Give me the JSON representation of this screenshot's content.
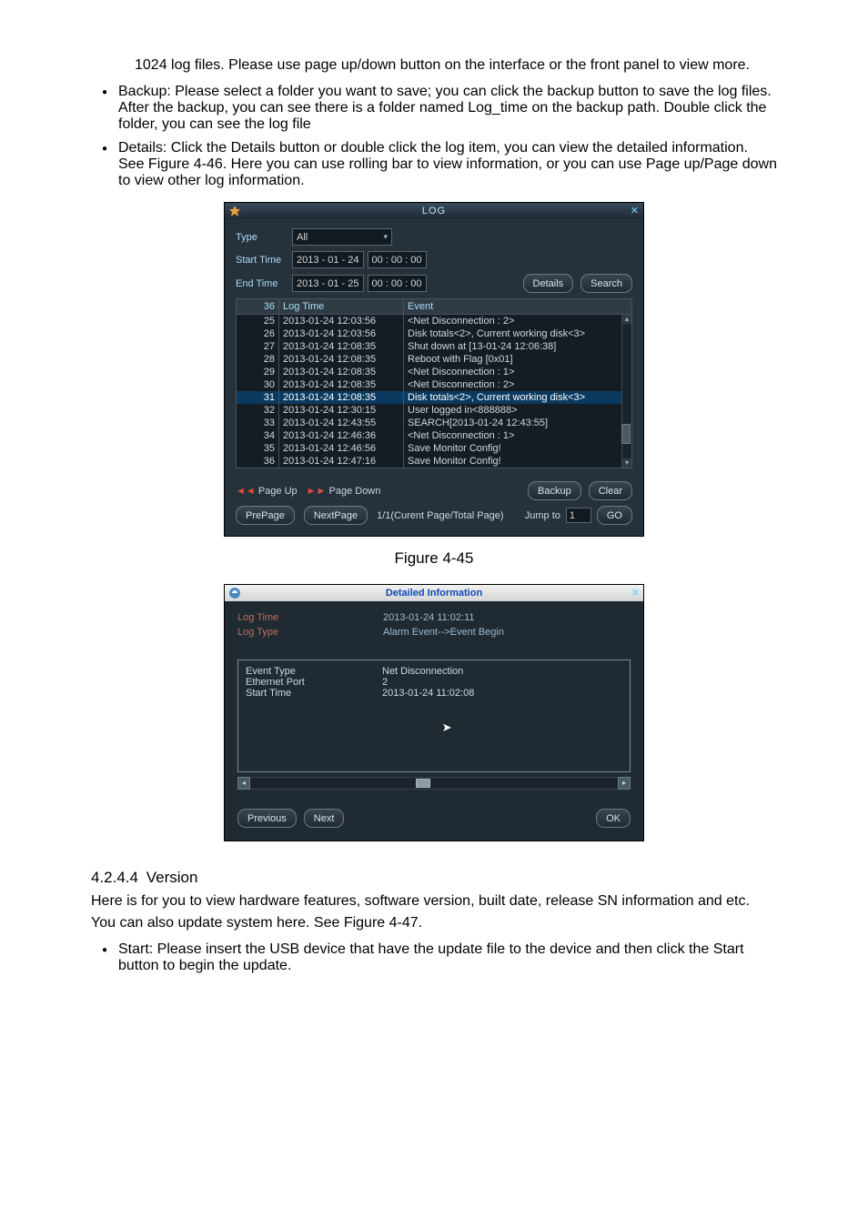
{
  "para_top": "1024 log files.  Please use page up/down button on the interface or the front panel to view more.",
  "bullets_top": [
    "Backup: Please select a folder you want to save; you can click the backup button to save the log files. After the backup, you can see there is a folder named Log_time on the backup path. Double click the folder, you can see the log file",
    "Details: Click the Details button or double click the log item, you can view the detailed information. See Figure 4-46. Here you can use rolling bar to view information, or you can use Page up/Page down to view other log information."
  ],
  "dlg1": {
    "title": "LOG",
    "type_label": "Type",
    "type_value": "All",
    "start_label": "Start Time",
    "start_date": "2013 - 01 - 24",
    "start_time": "00 : 00 : 00",
    "end_label": "End Time",
    "end_date": "2013 - 01 - 25",
    "end_time": "00 : 00 : 00",
    "details_btn": "Details",
    "search_btn": "Search",
    "col_n": "36",
    "col_t": "Log Time",
    "col_e": "Event",
    "rows": [
      {
        "n": "25",
        "t": "2013-01-24 12:03:56",
        "e": "<Net Disconnection : 2>"
      },
      {
        "n": "26",
        "t": "2013-01-24 12:03:56",
        "e": "Disk totals<2>, Current working disk<3>"
      },
      {
        "n": "27",
        "t": "2013-01-24 12:08:35",
        "e": "Shut down at [13-01-24 12:06:38]"
      },
      {
        "n": "28",
        "t": "2013-01-24 12:08:35",
        "e": "Reboot with Flag [0x01]"
      },
      {
        "n": "29",
        "t": "2013-01-24 12:08:35",
        "e": "<Net Disconnection : 1>"
      },
      {
        "n": "30",
        "t": "2013-01-24 12:08:35",
        "e": "<Net Disconnection : 2>"
      },
      {
        "n": "31",
        "t": "2013-01-24 12:08:35",
        "e": "Disk totals<2>, Current working disk<3>",
        "sel": true
      },
      {
        "n": "32",
        "t": "2013-01-24 12:30:15",
        "e": "User logged in<888888>"
      },
      {
        "n": "33",
        "t": "2013-01-24 12:43:55",
        "e": "SEARCH[2013-01-24 12:43:55]"
      },
      {
        "n": "34",
        "t": "2013-01-24 12:46:36",
        "e": "<Net Disconnection : 1>"
      },
      {
        "n": "35",
        "t": "2013-01-24 12:46:56",
        "e": "Save Monitor Config!"
      },
      {
        "n": "36",
        "t": "2013-01-24 12:47:16",
        "e": "Save Monitor Config!"
      }
    ],
    "page_up": "Page Up",
    "page_down": "Page Down",
    "backup_btn": "Backup",
    "clear_btn": "Clear",
    "prepage_btn": "PrePage",
    "nextpage_btn": "NextPage",
    "page_status": "1/1(Curent Page/Total Page)",
    "jump_label": "Jump to",
    "jump_value": "1",
    "go_btn": "GO"
  },
  "fig1_caption": "Figure 4-45",
  "dlg2": {
    "title": "Detailed Information",
    "upper": [
      {
        "lab": "Log Time",
        "val": "2013-01-24 11:02:11"
      },
      {
        "lab": "Log Type",
        "val": "Alarm Event-->Event Begin"
      }
    ],
    "box": [
      {
        "lab": "Event Type",
        "val": "Net Disconnection"
      },
      {
        "lab": "Ethernet Port",
        "val": "2"
      },
      {
        "lab": "Start Time",
        "val": "2013-01-24 11:02:08"
      }
    ],
    "prev_btn": "Previous",
    "next_btn": "Next",
    "ok_btn": "OK"
  },
  "section_num": "4.2.4.4",
  "section_title": "Version",
  "version_para": "Here is for you to view hardware features, software version, built date, release SN information and etc. You can also update system here. See Figure 4-47.",
  "bullets_bottom": [
    "Start: Please insert the USB device that have the update file to the device and then click the Start button to begin the update."
  ]
}
